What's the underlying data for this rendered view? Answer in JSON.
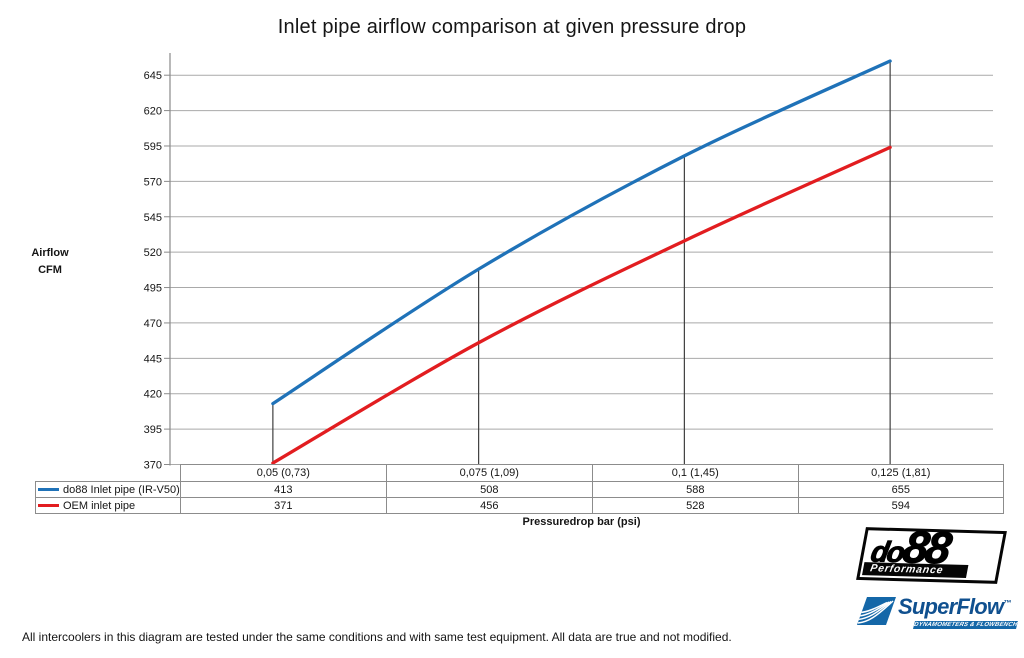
{
  "chart_data": {
    "type": "line",
    "title": "Inlet pipe airflow comparison at given pressure drop",
    "categories": [
      "0,05 (0,73)",
      "0,075 (1,09)",
      "0,1 (1,45)",
      "0,125 (1,81)"
    ],
    "series": [
      {
        "name": "do88 Inlet pipe (IR-V50)",
        "color": "#1F72B8",
        "values": [
          413,
          508,
          588,
          655
        ]
      },
      {
        "name": "OEM inlet pipe",
        "color": "#E21D20",
        "values": [
          371,
          456,
          528,
          594
        ]
      }
    ],
    "xlabel": "Pressuredrop bar (psi)",
    "ylabel_lines": [
      "Airflow",
      "CFM"
    ],
    "ylim": [
      370,
      645
    ],
    "ytick_step": 25,
    "grid": "horizontal-gray-lines, vertical black drop-lines at each category up to blue series",
    "legend_position": "table-left",
    "colors": {
      "gridline": "#a9a9a9",
      "axis": "#8a8a8a",
      "drop_line": "#3f3f3f",
      "table_border": "#8c8c8c"
    }
  },
  "footer": "All intercoolers in this diagram are tested under the same conditions and with same test equipment. All data are true and not modified.",
  "logos": {
    "do88": {
      "brand_prefix": "do",
      "brand_suffix": "88",
      "tagline": "Performance"
    },
    "superflow": {
      "brand": "SuperFlow",
      "tm": "™",
      "tagline": "DYNAMOMETERS & FLOWBENCHES"
    }
  }
}
